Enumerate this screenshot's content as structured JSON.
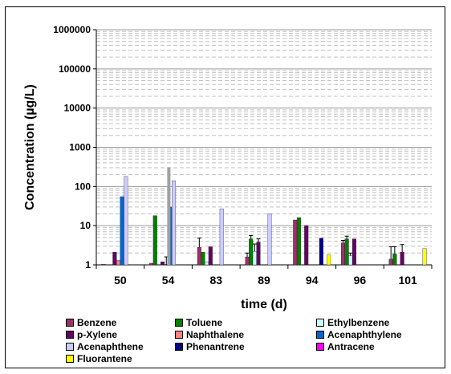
{
  "chart_data": {
    "type": "bar",
    "scale": "log",
    "ylim": [
      1,
      1000000
    ],
    "xlabel": "time (d)",
    "ylabel": "Concentration (µg/L)",
    "title": "",
    "grid": true,
    "legend_position": "bottom",
    "yticks": [
      "1",
      "10",
      "100",
      "1000",
      "10000",
      "100000",
      "1000000"
    ],
    "categories": [
      "50",
      "54",
      "83",
      "89",
      "94",
      "96",
      "101"
    ],
    "series": [
      {
        "name": "Benzene",
        "color": "#993366",
        "values": [
          1.0,
          1.1,
          2.8,
          1.6,
          14,
          3.6,
          1.4
        ],
        "errors": [
          null,
          null,
          2.0,
          0.4,
          null,
          0.6,
          1.5
        ]
      },
      {
        "name": "Toluene",
        "color": "#008000",
        "values": [
          null,
          18,
          2.1,
          4.6,
          16,
          4.6,
          1.9
        ],
        "errors": [
          null,
          null,
          null,
          1.0,
          null,
          0.8,
          1.0
        ]
      },
      {
        "name": "Ethylbenzene",
        "color": "#CCFFFF",
        "values": [
          null,
          null,
          1.2,
          2.2,
          null,
          1.7,
          null
        ],
        "errors": [
          null,
          null,
          null,
          1.2,
          null,
          0.3,
          null
        ]
      },
      {
        "name": "p-Xylene",
        "color": "#660066",
        "values": [
          2.1,
          1.2,
          2.9,
          3.8,
          10,
          4.6,
          2.1
        ],
        "errors": [
          null,
          null,
          null,
          0.8,
          null,
          null,
          1.2
        ]
      },
      {
        "name": "Naphthalene",
        "color": "#FF8080",
        "values": [
          1.3,
          1.0,
          null,
          null,
          null,
          null,
          null
        ],
        "errors": [
          null,
          0.6,
          null,
          null,
          null,
          null,
          null
        ]
      },
      {
        "name": "Acenaphthylene",
        "color": "#0066CC",
        "values": [
          55,
          30,
          null,
          null,
          null,
          null,
          null
        ],
        "errors": [
          null,
          null,
          null,
          null,
          null,
          null,
          null
        ]
      },
      {
        "name": "Acenaphthene",
        "color": "#CCCCFF",
        "values": [
          180,
          140,
          27,
          20,
          null,
          null,
          null
        ],
        "errors": [
          null,
          null,
          null,
          null,
          null,
          null,
          null
        ]
      },
      {
        "name": "Phenantrene",
        "color": "#000080",
        "values": [
          null,
          null,
          null,
          null,
          4.8,
          null,
          null
        ],
        "errors": [
          null,
          null,
          null,
          null,
          null,
          null,
          null
        ]
      },
      {
        "name": "Antracene",
        "color": "#FF00FF",
        "values": [
          null,
          null,
          null,
          null,
          null,
          null,
          null
        ],
        "errors": [
          null,
          null,
          null,
          null,
          null,
          null,
          null
        ]
      },
      {
        "name": "Fluorantene",
        "color": "#FFFF00",
        "values": [
          null,
          null,
          null,
          null,
          1.8,
          null,
          2.6
        ],
        "errors": [
          null,
          null,
          null,
          null,
          null,
          null,
          null
        ]
      }
    ],
    "extra_bars": [
      {
        "category": "54",
        "color": "#A0A0A0",
        "value": 310
      }
    ]
  }
}
